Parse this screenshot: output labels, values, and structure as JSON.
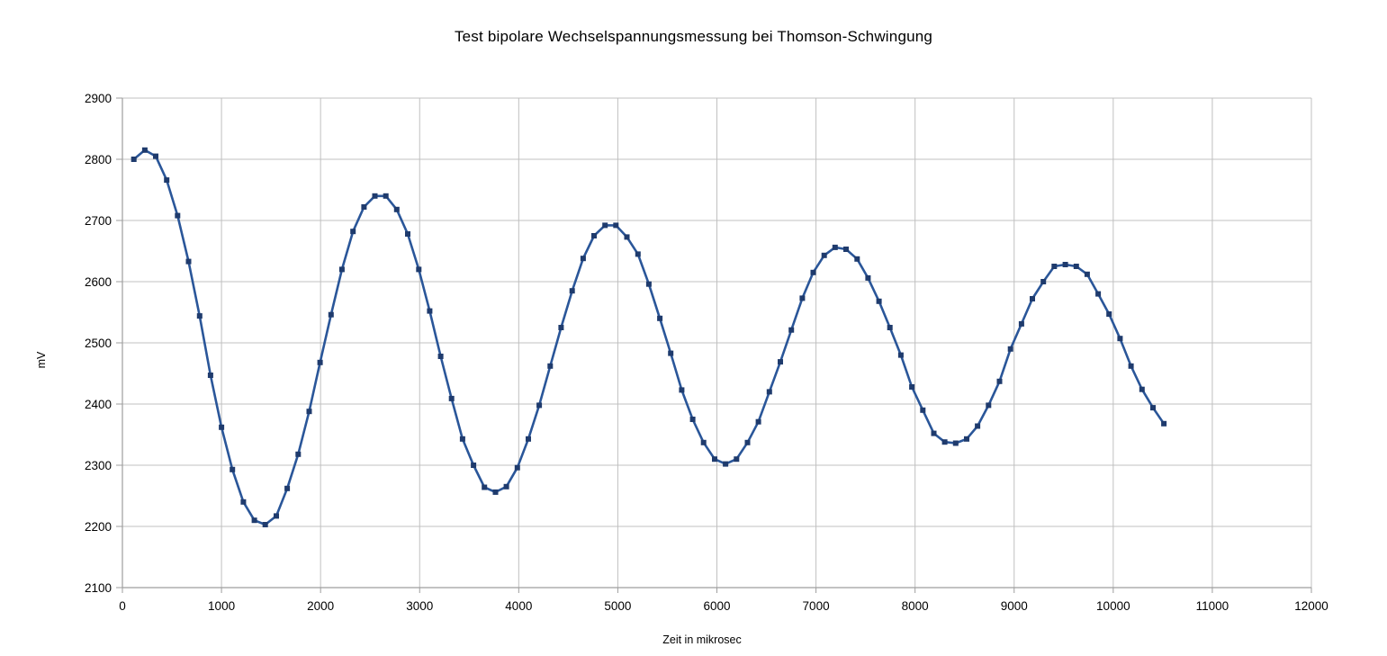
{
  "title": "Test bipolare Wechselspannungsmessung bei Thomson-Schwingung",
  "colors": {
    "line": "#2a5699",
    "marker": "#1f3b6d",
    "grid": "#c0c0c0",
    "axis": "#9e9e9e",
    "background": "#ffffff",
    "text": "#000000"
  },
  "chart_data": {
    "type": "line",
    "title": "Test bipolare Wechselspannungsmessung bei Thomson-Schwingung",
    "xlabel": "Zeit in mikrosec",
    "ylabel": "mV",
    "xlim": [
      0,
      12000
    ],
    "ylim": [
      2100,
      2900
    ],
    "x_ticks": [
      0,
      1000,
      2000,
      3000,
      4000,
      5000,
      6000,
      7000,
      8000,
      9000,
      10000,
      11000,
      12000
    ],
    "y_ticks": [
      2100,
      2200,
      2300,
      2400,
      2500,
      2600,
      2700,
      2800,
      2900
    ],
    "grid": true,
    "legend": false,
    "marker": "square",
    "x": [
      115,
      226,
      336,
      447,
      557,
      668,
      779,
      889,
      1000,
      1110,
      1221,
      1332,
      1442,
      1553,
      1663,
      1774,
      1885,
      1995,
      2106,
      2216,
      2327,
      2438,
      2548,
      2659,
      2769,
      2880,
      2991,
      3101,
      3212,
      3322,
      3433,
      3544,
      3654,
      3765,
      3875,
      3986,
      4097,
      4207,
      4318,
      4428,
      4539,
      4650,
      4760,
      4871,
      4981,
      5092,
      5203,
      5313,
      5424,
      5534,
      5645,
      5756,
      5866,
      5977,
      6087,
      6198,
      6309,
      6419,
      6530,
      6640,
      6751,
      6862,
      6972,
      7083,
      7193,
      7304,
      7415,
      7525,
      7636,
      7746,
      7857,
      7968,
      8078,
      8189,
      8299,
      8410,
      8521,
      8631,
      8742,
      8852,
      8963,
      9074,
      9184,
      9295,
      9405,
      9516,
      9627,
      9737,
      9848,
      9958,
      10069,
      10180,
      10290,
      10401,
      10511
    ],
    "y": [
      2800,
      2815,
      2805,
      2766,
      2708,
      2633,
      2544,
      2447,
      2362,
      2293,
      2240,
      2210,
      2203,
      2217,
      2262,
      2318,
      2388,
      2468,
      2546,
      2620,
      2682,
      2722,
      2740,
      2740,
      2718,
      2678,
      2620,
      2552,
      2478,
      2409,
      2343,
      2300,
      2264,
      2256,
      2265,
      2296,
      2343,
      2398,
      2462,
      2525,
      2585,
      2638,
      2675,
      2692,
      2692,
      2673,
      2645,
      2596,
      2540,
      2483,
      2423,
      2375,
      2337,
      2310,
      2302,
      2310,
      2337,
      2371,
      2420,
      2469,
      2521,
      2573,
      2615,
      2643,
      2656,
      2653,
      2637,
      2606,
      2568,
      2525,
      2480,
      2428,
      2390,
      2352,
      2338,
      2336,
      2343,
      2364,
      2398,
      2437,
      2490,
      2531,
      2572,
      2600,
      2625,
      2628,
      2625,
      2612,
      2580,
      2547,
      2507,
      2462,
      2424,
      2394,
      2368
    ]
  }
}
